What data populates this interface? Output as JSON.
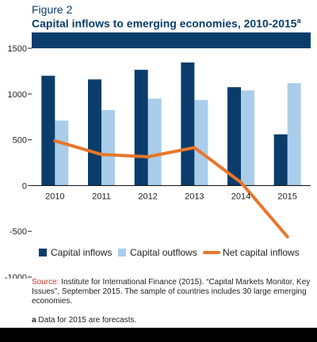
{
  "header": {
    "figure_label": "Figure 2",
    "title": "Capital inflows to emerging economies, 2010-2015",
    "title_superscript": "a"
  },
  "colors": {
    "inflows": "#0a3d6b",
    "outflows": "#a9cdea",
    "net": "#e8762b",
    "top_band": "#0a3d6b",
    "source_label": "#c0392b"
  },
  "chart_data": {
    "type": "bar",
    "categories": [
      "2010",
      "2011",
      "2012",
      "2013",
      "2014",
      "2015"
    ],
    "series": [
      {
        "name": "Capital inflows",
        "type": "bar",
        "values": [
          1200,
          1160,
          1265,
          1345,
          1075,
          560
        ]
      },
      {
        "name": "Capital outflows",
        "type": "bar",
        "values": [
          710,
          825,
          950,
          935,
          1040,
          1120
        ]
      },
      {
        "name": "Net capital inflows",
        "type": "line",
        "values": [
          490,
          340,
          315,
          415,
          35,
          -560
        ]
      }
    ],
    "ylim": [
      -1000,
      1500
    ],
    "yticks": [
      "-1000",
      "-500",
      "0",
      "500",
      "1000",
      "1500"
    ],
    "legend_position": "bottom",
    "grid": false
  },
  "footer": {
    "source_label": "Source:",
    "source_text": " Institute for International Finance (2015). “Capital Markets Monitor, Key Issues”, September 2015. The sample of countries includes 30 large emerging economies.",
    "footnote_marker": "a",
    "footnote_text": " Data for 2015 are forecasts."
  }
}
